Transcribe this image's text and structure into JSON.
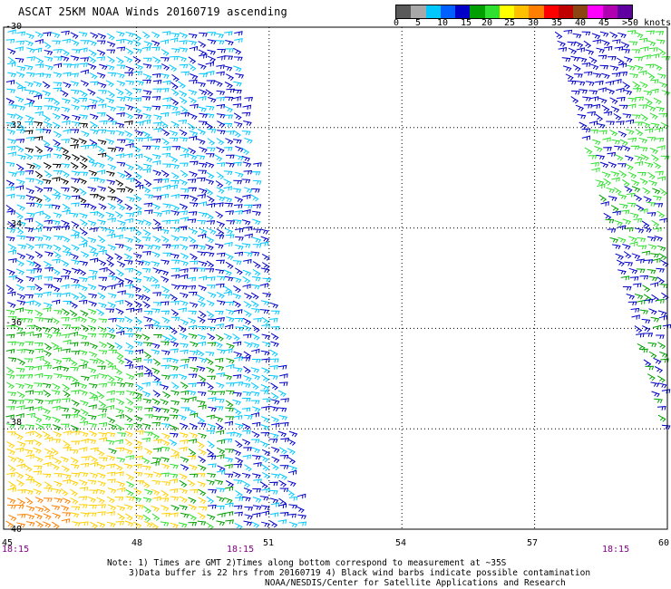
{
  "title": "ASCAT 25KM NOAA Winds 20160719 ascending",
  "colorbar": {
    "colors": [
      "#5a5a5a",
      "#a8a8a8",
      "#00c8ff",
      "#0060ff",
      "#0000c8",
      "#00a000",
      "#30e030",
      "#ffff00",
      "#ffc000",
      "#ff8000",
      "#ff0000",
      "#c00000",
      "#8b4513",
      "#ff00ff",
      "#b000b0",
      "#6000a0"
    ],
    "labels": [
      "0",
      "5",
      "10",
      "15",
      "20",
      "25",
      "30",
      "35",
      "40",
      "45",
      ">50 knots"
    ]
  },
  "axes": {
    "lat_labels": [
      "-30",
      "-32",
      "-34",
      "-36",
      "-38",
      "-40"
    ],
    "lon_labels": [
      "45",
      "48",
      "51",
      "54",
      "57",
      "60"
    ],
    "time_labels": [
      "18:15",
      "18:15",
      "18:15"
    ]
  },
  "swaths": [
    {
      "name": "west-swath",
      "lon_range": [
        45,
        51.7
      ],
      "dominant_speed_knots": "5-20"
    },
    {
      "name": "east-swath",
      "lon_range": [
        57.5,
        60
      ],
      "dominant_speed_knots": "15-25"
    }
  ],
  "speed_colors": {
    "contaminated": "#000000",
    "light": "#00c8ff",
    "moderate": "#0000c8",
    "fresh": "#00a000",
    "bright_green": "#30e030",
    "strong": "#ffd000",
    "gale": "#ff8000"
  },
  "notes": {
    "line1": "Note: 1) Times are GMT 2)Times along bottom correspond to measurement at ~35S",
    "line2": "3)Data buffer is 22 hrs from 20160719 4) Black wind barbs indicate possible contamination",
    "line3": "NOAA/NESDIS/Center for Satellite Applications and Research"
  }
}
